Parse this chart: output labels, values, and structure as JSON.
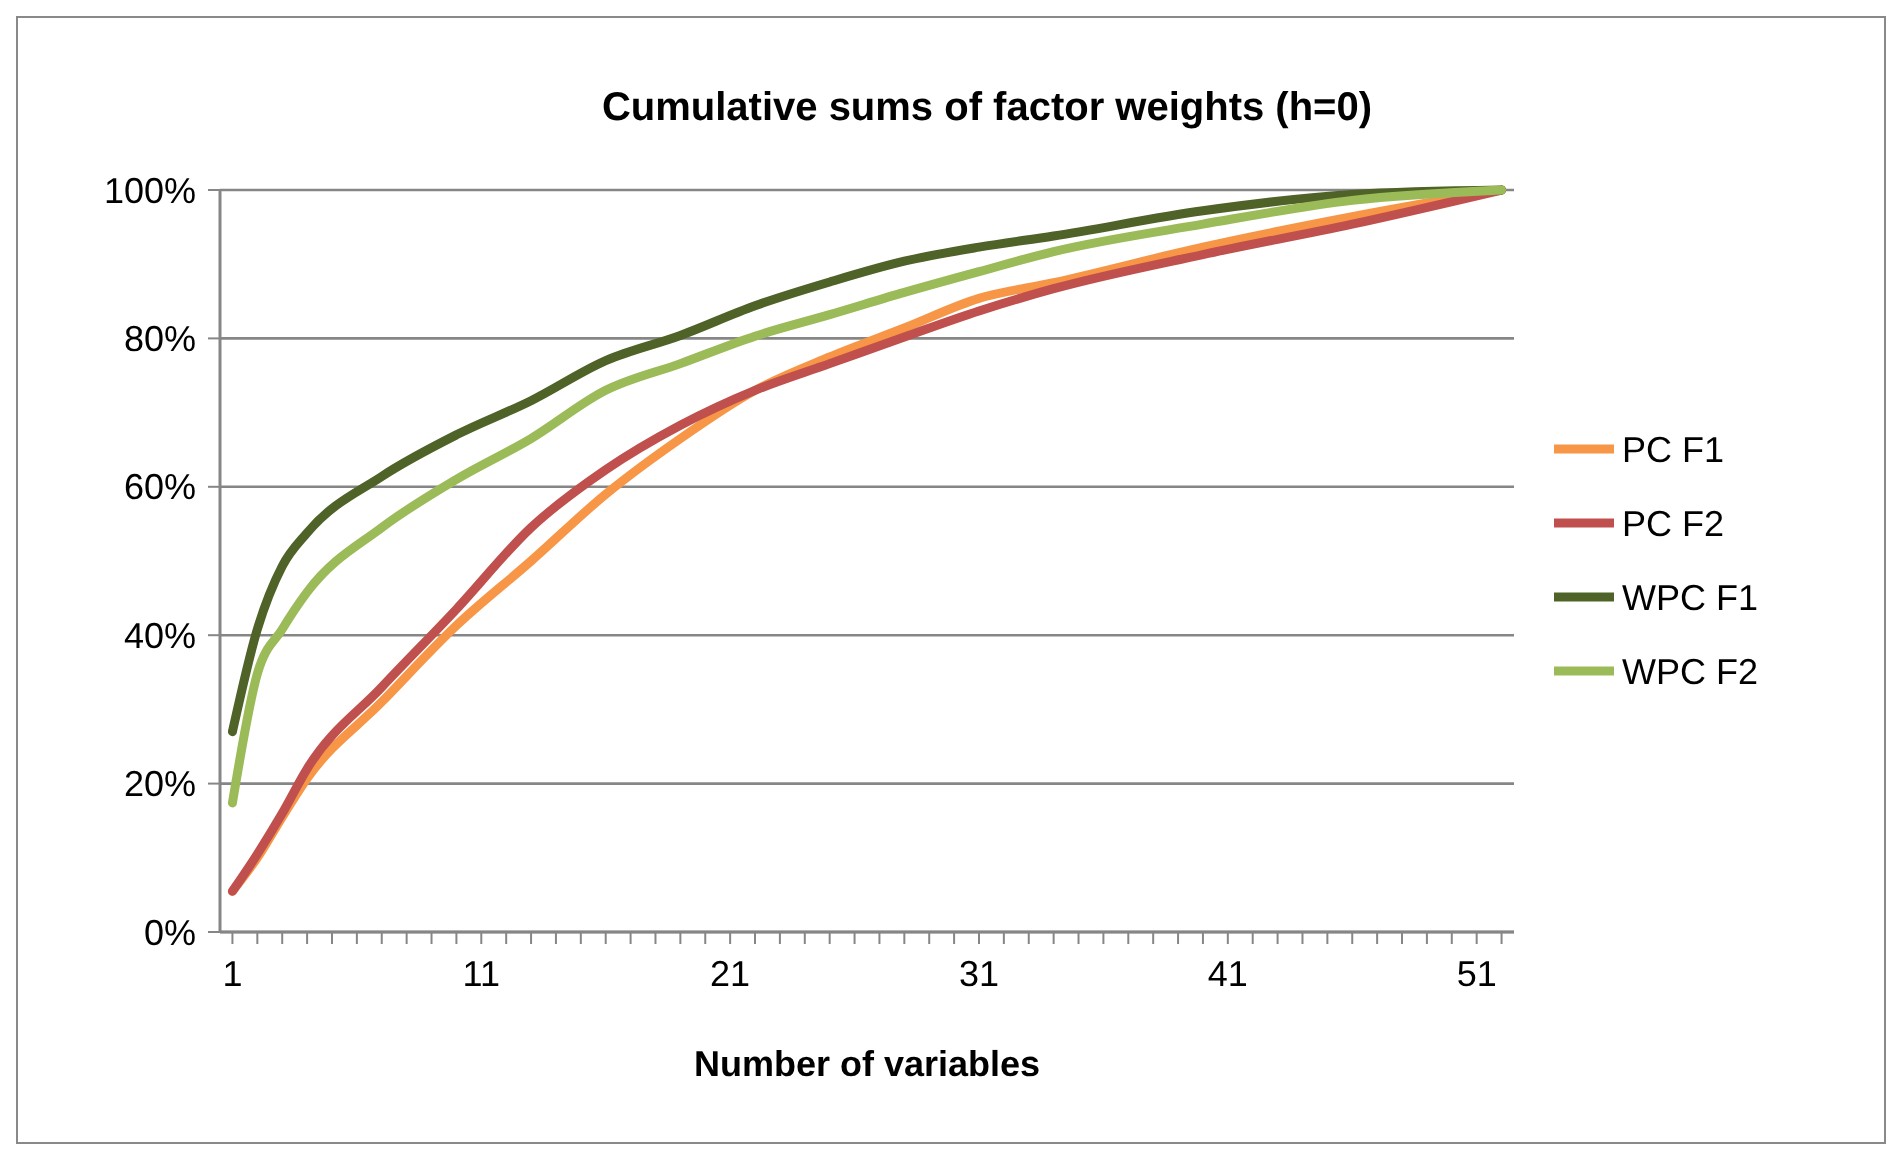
{
  "chart_data": {
    "type": "line",
    "title": "Cumulative sums of factor weights (h=0)",
    "xlabel": "Number of variables",
    "x": [
      1,
      2,
      3,
      4,
      7,
      10,
      13,
      16,
      19,
      22,
      25,
      28,
      31,
      34,
      40,
      46,
      52
    ],
    "xlim": [
      0.5,
      52.5
    ],
    "xticks": [
      1,
      11,
      21,
      31,
      41,
      51
    ],
    "ylim": [
      0,
      100
    ],
    "yticks": [
      {
        "value": 0,
        "label": "0%"
      },
      {
        "value": 20,
        "label": "20%"
      },
      {
        "value": 40,
        "label": "40%"
      },
      {
        "value": 60,
        "label": "60%"
      },
      {
        "value": 80,
        "label": "80%"
      },
      {
        "value": 100,
        "label": "100%"
      }
    ],
    "grid": "y",
    "legend": "right",
    "marker": "none",
    "line_style": "solid",
    "series": [
      {
        "name": "PC F1",
        "color": "#f79646",
        "values": [
          5.5,
          10,
          15.5,
          20.7,
          31,
          41.3,
          50,
          59,
          66.5,
          73,
          77.5,
          81.4,
          85.4,
          87.5,
          92.3,
          96.4,
          100
        ]
      },
      {
        "name": "PC F2",
        "color": "#c0504d",
        "values": [
          5.5,
          10.5,
          16,
          22,
          33,
          43.5,
          54.5,
          62.3,
          68.3,
          73,
          76.6,
          80.2,
          83.7,
          86.7,
          91.3,
          95.4,
          100
        ]
      },
      {
        "name": "WPC F1",
        "color": "#4f6228",
        "values": [
          27,
          40.8,
          49.3,
          53.8,
          61.4,
          67,
          71.6,
          77,
          80.4,
          84.4,
          87.6,
          90.4,
          92.3,
          93.8,
          97.2,
          99.4,
          100
        ]
      },
      {
        "name": "WPC F2",
        "color": "#9bbb59",
        "values": [
          17.4,
          34.8,
          40.8,
          45.8,
          54.5,
          61,
          66.5,
          73,
          76.6,
          80.3,
          83.2,
          86.2,
          89,
          91.7,
          95.4,
          98.6,
          100
        ]
      }
    ]
  }
}
